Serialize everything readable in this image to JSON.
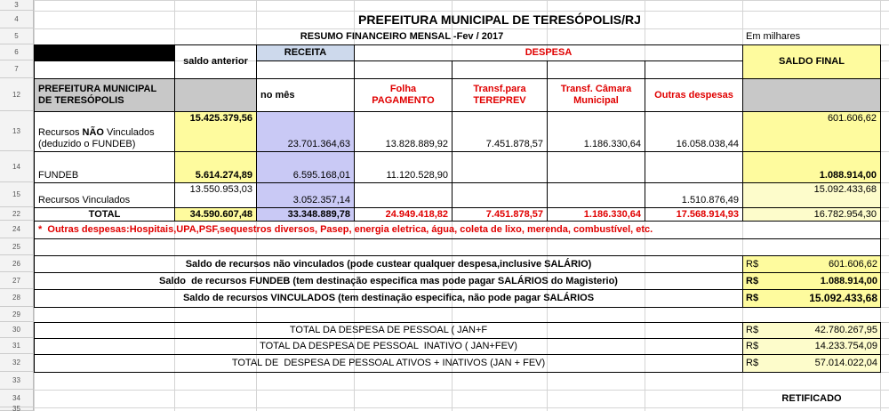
{
  "row_numbers": [
    "3",
    "4",
    "5",
    "6",
    "7",
    "12",
    "13",
    "14",
    "15",
    "22",
    "24",
    "25",
    "26",
    "27",
    "28",
    "29",
    "30",
    "31",
    "32",
    "33",
    "34",
    "35"
  ],
  "title": "PREFEITURA MUNICIPAL DE TERESÓPOLIS/RJ",
  "subtitle": "RESUMO FINANCEIRO MENSAL -Fev / 2017",
  "unit_note": "Em milhares",
  "headers": {
    "saldo_anterior": "saldo anterior",
    "receita": "RECEITA",
    "despesa": "DESPESA",
    "saldo_final": "SALDO FINAL",
    "entity": "PREFEITURA MUNICIPAL DE TERESÓPOLIS",
    "no_mes": "no mês",
    "folha": "Folha PAGAMENTO",
    "tereprev": "Transf.para TEREPREV",
    "camara": "Transf. Câmara Municipal",
    "outras": "Outras despesas"
  },
  "rows": [
    {
      "label_parts": [
        "Recursos ",
        "NÃO",
        " Vinculados (deduzido o FUNDEB)"
      ],
      "saldo_anterior": "15.425.379,56",
      "receita": "23.701.364,63",
      "folha": "13.828.889,92",
      "tereprev": "7.451.878,57",
      "camara": "1.186.330,64",
      "outras": "16.058.038,44",
      "saldo_final": "601.606,62"
    },
    {
      "label_parts": [
        "FUNDEB"
      ],
      "saldo_anterior": "5.614.274,89",
      "receita": "6.595.168,01",
      "folha": "11.120.528,90",
      "saldo_final": "1.088.914,00"
    },
    {
      "label_parts": [
        "Recursos Vinculados"
      ],
      "saldo_anterior": "13.550.953,03",
      "receita": "3.052.357,14",
      "outras": "1.510.876,49",
      "saldo_final": "15.092.433,68"
    },
    {
      "label_parts": [
        "TOTAL"
      ],
      "saldo_anterior": "34.590.607,48",
      "receita": "33.348.889,78",
      "folha": "24.949.418,82",
      "tereprev": "7.451.878,57",
      "camara": "1.186.330,64",
      "outras": "17.568.914,93",
      "saldo_final": "16.782.954,30"
    }
  ],
  "note": "*  Outras despesas:Hospitais,UPA,PSF,sequestros diversos, Pasep, energia eletrica, água, coleta de lixo, merenda, combustível, etc.",
  "summary": [
    {
      "label": "Saldo de recursos não vinculados (pode custear qualquer despesa,inclusive SALÁRIO)",
      "currency": "R$",
      "value": "601.606,62"
    },
    {
      "label": "Saldo  de recursos FUNDEB (tem destinação especifica mas pode pagar SALÁRIOS do Magisterio)",
      "currency": "R$",
      "value": "1.088.914,00"
    },
    {
      "label": "Saldo de recursos VINCULADOS (tem destinação especifica, não pode pagar SALÁRIOS",
      "currency": "R$",
      "value": "15.092.433,68"
    }
  ],
  "personnel": [
    {
      "label": "TOTAL DA DESPESA DE PESSOAL ( JAN+F",
      "currency": "R$",
      "value": "42.780.267,95"
    },
    {
      "label": "TOTAL DA DESPESA DE PESSOAL  INATIVO ( JAN+FEV)",
      "currency": "R$",
      "value": "14.233.754,09"
    },
    {
      "label": "TOTAL DE  DESPESA DE PESSOAL ATIVOS + INATIVOS (JAN + FEV)",
      "currency": "R$",
      "value": "57.014.022,04"
    }
  ],
  "footer": "RETIFICADO"
}
